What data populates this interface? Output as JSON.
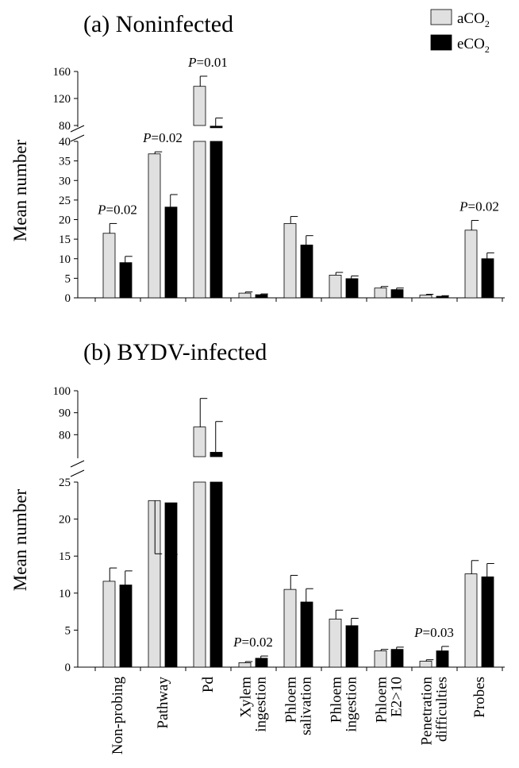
{
  "legend": [
    {
      "label": "aCO",
      "sub": "2",
      "color": "#e0e0e0"
    },
    {
      "label": "eCO",
      "sub": "2",
      "color": "#000000"
    }
  ],
  "ylabel": "Mean number",
  "categories": [
    [
      "Non-probing"
    ],
    [
      "Pathway"
    ],
    [
      "Pd"
    ],
    [
      "Xylem",
      "ingestion"
    ],
    [
      "Phloem",
      "salivation"
    ],
    [
      "Phloem",
      "ingestion"
    ],
    [
      "Phloem",
      "E2>10"
    ],
    [
      "Penetration",
      "difficulties"
    ],
    [
      "Probes"
    ]
  ],
  "chart_data": [
    {
      "type": "bar",
      "title": "(a) Noninfected",
      "ylabel": "Mean number",
      "lower_ticks": [
        0,
        5,
        10,
        15,
        20,
        25,
        30,
        35,
        40
      ],
      "upper_ticks": [
        80,
        120,
        160
      ],
      "lower_range": [
        0,
        40
      ],
      "upper_range": [
        80,
        160
      ],
      "series": [
        {
          "name": "aCO2",
          "values": [
            16.5,
            36.8,
            138,
            1.2,
            19,
            5.8,
            2.5,
            0.7,
            17.3
          ],
          "errors": [
            2.5,
            4.2,
            15,
            0.3,
            1.8,
            0.7,
            0.4,
            0.2,
            2.5
          ]
        },
        {
          "name": "eCO2",
          "values": [
            9,
            23.2,
            79,
            0.8,
            13.5,
            4.9,
            2.1,
            0.4,
            10
          ],
          "errors": [
            1.6,
            3.2,
            12,
            0.2,
            2.4,
            0.7,
            0.4,
            0.15,
            1.5
          ]
        }
      ],
      "annotations": [
        {
          "cat": 0,
          "text": "=0.02"
        },
        {
          "cat": 1,
          "text": "=0.02"
        },
        {
          "cat": 2,
          "text": "=0.01"
        },
        {
          "cat": 8,
          "text": "=0.02"
        }
      ]
    },
    {
      "type": "bar",
      "title": "(b) BYDV-infected",
      "ylabel": "Mean number",
      "lower_ticks": [
        0,
        5,
        10,
        15,
        20,
        25
      ],
      "upper_ticks": [
        80,
        90,
        100
      ],
      "lower_range": [
        0,
        25
      ],
      "upper_range": [
        70,
        100
      ],
      "series": [
        {
          "name": "aCO2",
          "values": [
            11.6,
            22.5,
            83.5,
            0.6,
            10.5,
            6.5,
            2.2,
            0.8,
            12.6
          ],
          "errors": [
            1.8,
            3.3,
            13,
            0.15,
            1.9,
            1.2,
            0.2,
            0.2,
            1.8
          ]
        },
        {
          "name": "eCO2",
          "values": [
            11.1,
            22.2,
            72,
            1.2,
            8.8,
            5.6,
            2.4,
            2.2,
            12.2
          ],
          "errors": [
            1.9,
            3.3,
            14,
            0.3,
            1.8,
            1,
            0.3,
            0.6,
            1.8
          ]
        }
      ],
      "annotations": [
        {
          "cat": 3,
          "text": "=0.02"
        },
        {
          "cat": 7,
          "text": "=0.03"
        }
      ]
    }
  ]
}
